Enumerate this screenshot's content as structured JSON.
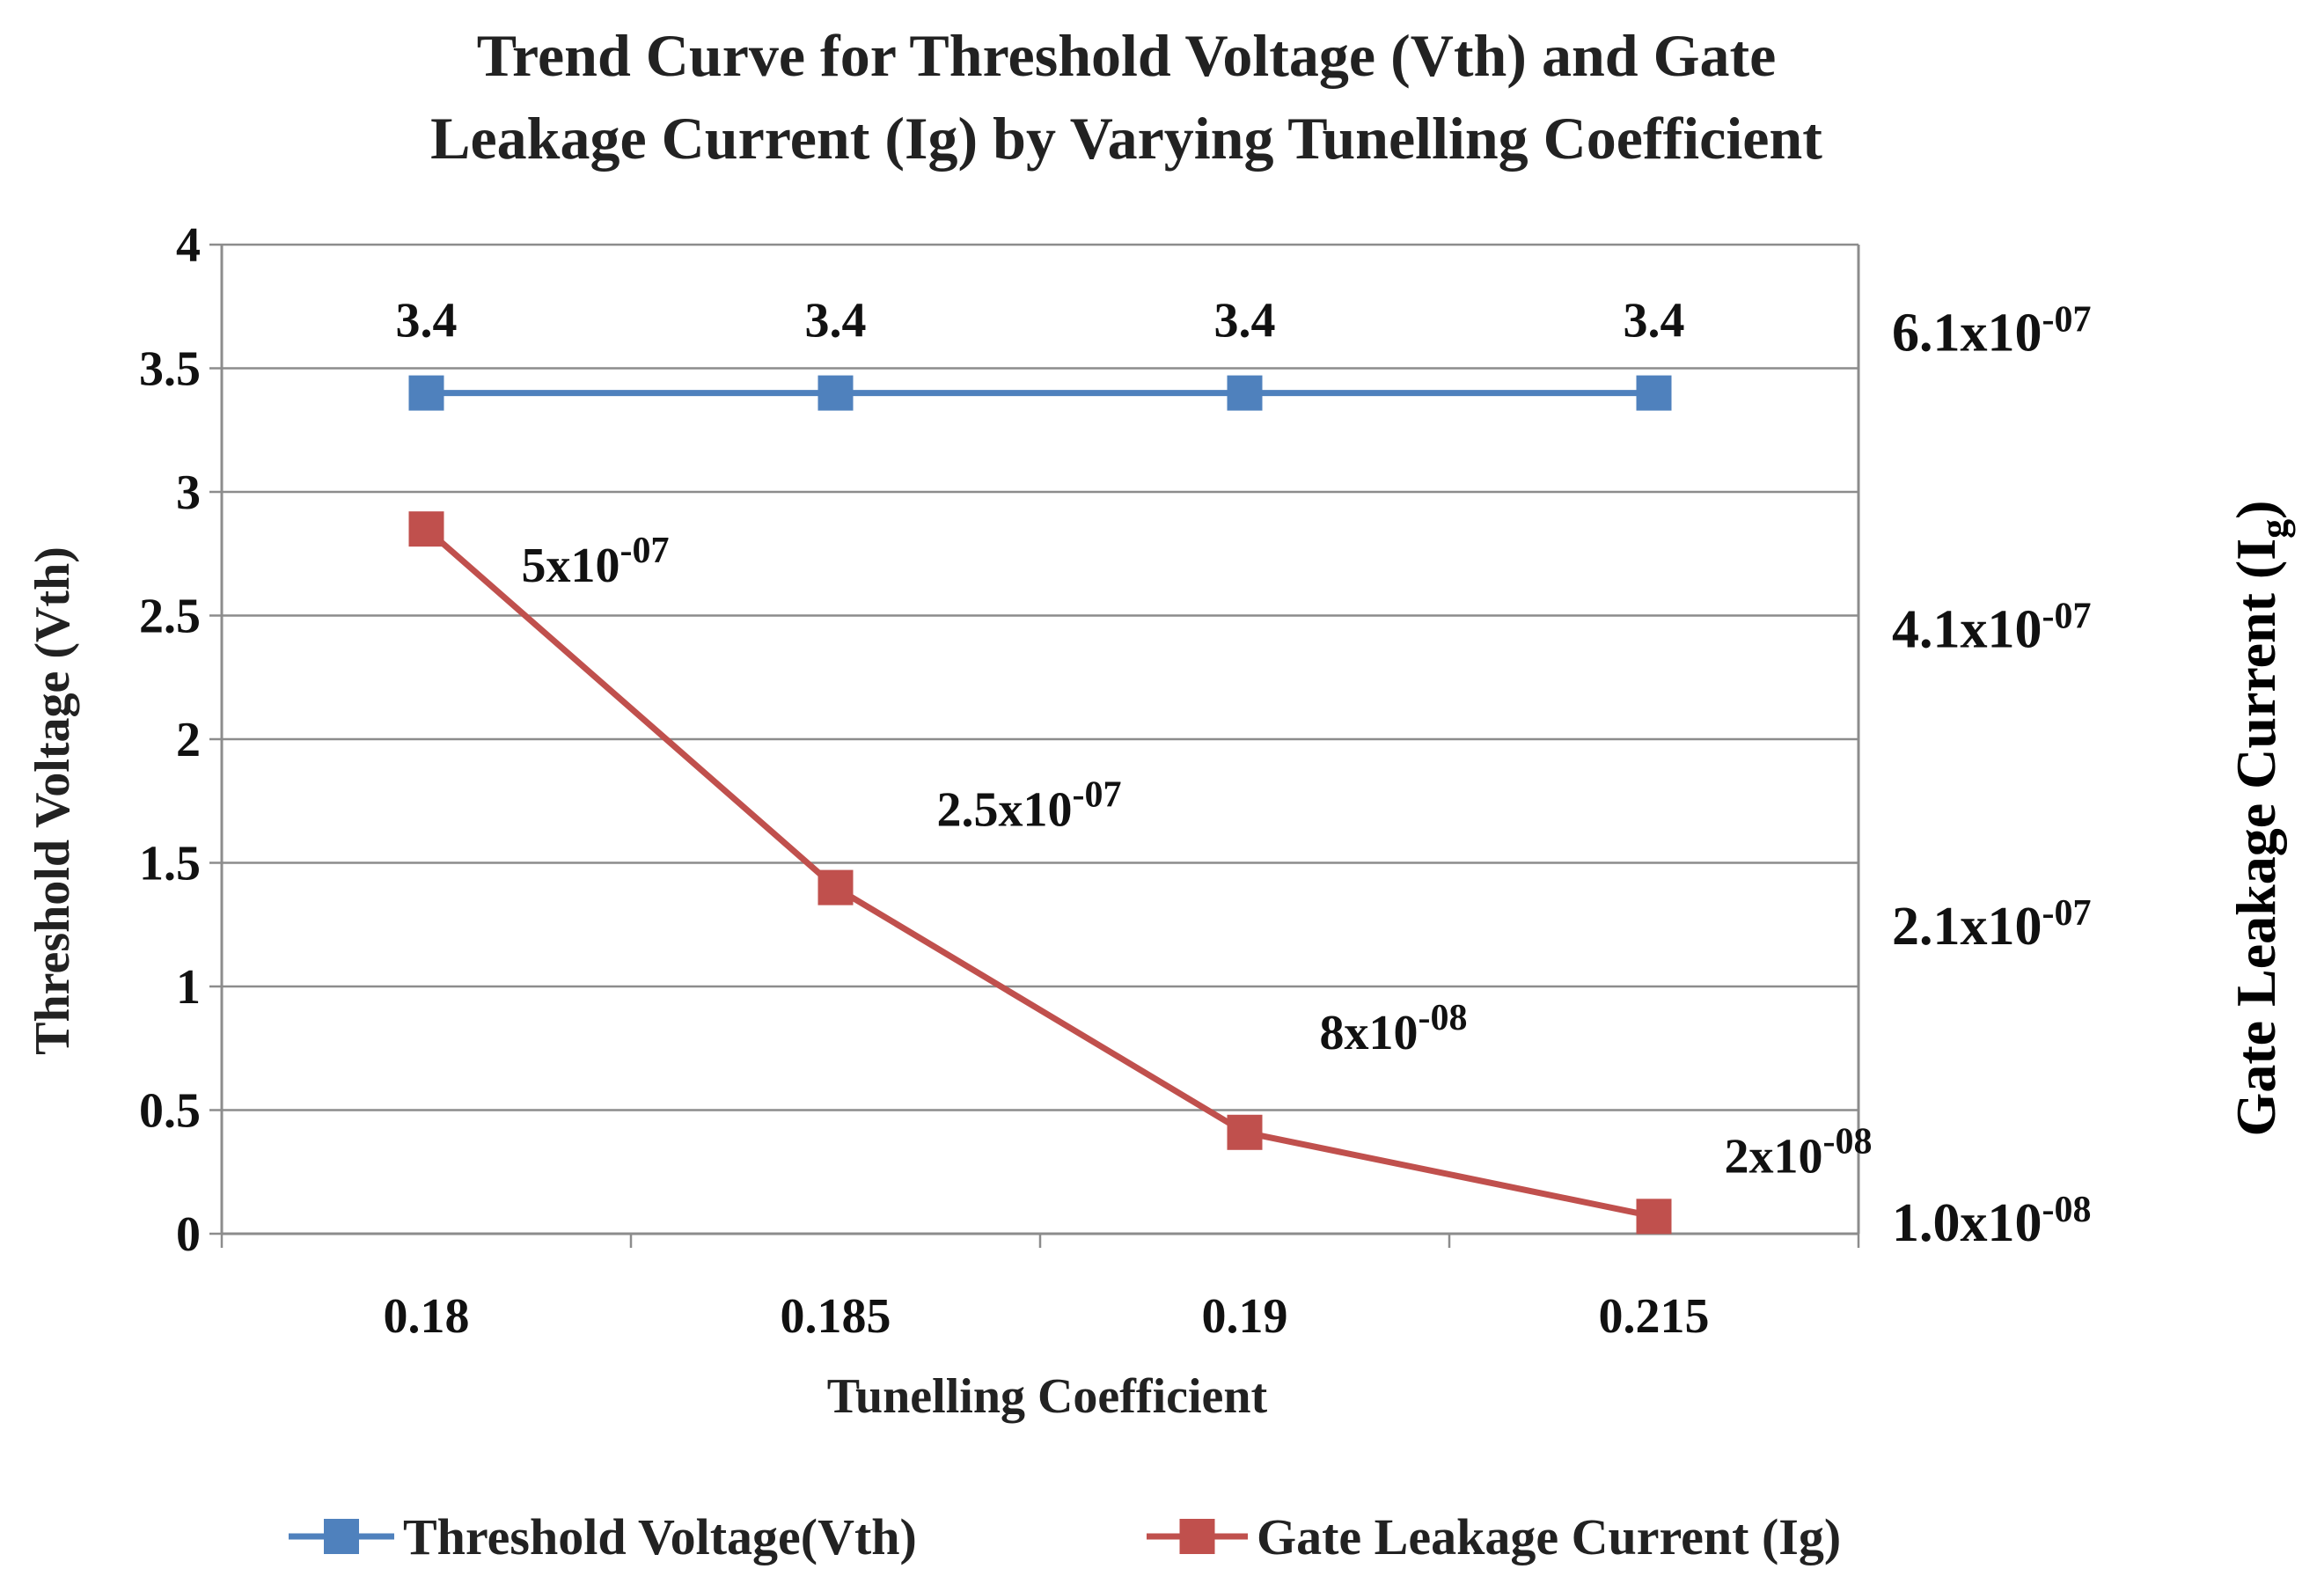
{
  "chart_data": {
    "type": "line",
    "title_lines": [
      "Trend Curve for Threshold Voltage (Vth)  and Gate",
      "Leakage Current  (Ig) by Varying  Tunelling  Coefficient"
    ],
    "xlabel": "Tunelling  Coefficient",
    "ylabel": "Threshold Voltage (Vth)",
    "y2label": {
      "base": "Gate Leakage Current (I",
      "sub": "g",
      "close": ")"
    },
    "categories": [
      "0.18",
      "0.185",
      "0.19",
      "0.215"
    ],
    "ylim": [
      0,
      4
    ],
    "yticks": [
      {
        "value": 0,
        "label": "0"
      },
      {
        "value": 0.5,
        "label": "0.5"
      },
      {
        "value": 1,
        "label": "1"
      },
      {
        "value": 1.5,
        "label": "1.5"
      },
      {
        "value": 2,
        "label": "2"
      },
      {
        "value": 2.5,
        "label": "2.5"
      },
      {
        "value": 3,
        "label": "3"
      },
      {
        "value": 3.5,
        "label": "3.5"
      },
      {
        "value": 4,
        "label": "4"
      }
    ],
    "y2ticks": [
      {
        "at_left_value": 0.05,
        "base": "1.0x10",
        "exp": "-08"
      },
      {
        "at_left_value": 1.25,
        "base": "2.1x10",
        "exp": "-07"
      },
      {
        "at_left_value": 2.45,
        "base": "4.1x10",
        "exp": "-07"
      },
      {
        "at_left_value": 3.65,
        "base": "6.1x10",
        "exp": "-07"
      }
    ],
    "series": [
      {
        "name": "Threshold Voltage(Vth)",
        "color": "#4f81bd",
        "values": [
          3.4,
          3.4,
          3.4,
          3.4
        ],
        "labels": [
          {
            "base": "3.4",
            "exp": ""
          },
          {
            "base": "3.4",
            "exp": ""
          },
          {
            "base": "3.4",
            "exp": ""
          },
          {
            "base": "3.4",
            "exp": ""
          }
        ]
      },
      {
        "name": "Gate Leakage Current (Ig)",
        "color": "#c0504d",
        "values": [
          2.85,
          1.4,
          0.41,
          0.07
        ],
        "labels": [
          {
            "base": "5x10",
            "exp": "-07"
          },
          {
            "base": "2.5x10",
            "exp": "-07"
          },
          {
            "base": "8x10",
            "exp": "-08"
          },
          {
            "base": "2x10",
            "exp": "-08"
          }
        ]
      }
    ],
    "grid": true,
    "legend_position": "bottom"
  }
}
